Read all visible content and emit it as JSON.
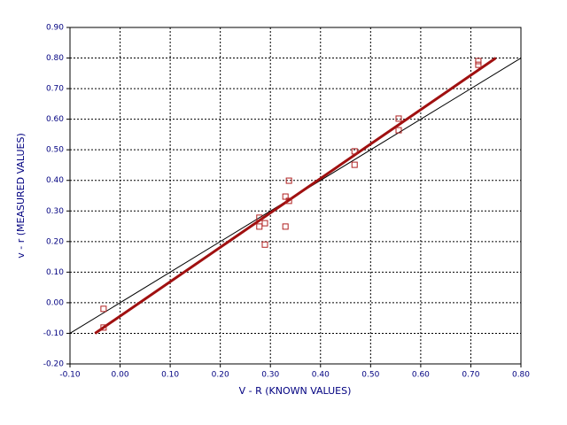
{
  "chart_data": {
    "type": "scatter",
    "x_label": "V - R (KNOWN VALUES)",
    "y_label": "v - r (MEASURED VALUES)",
    "xlim": [
      -0.1,
      0.8
    ],
    "ylim": [
      -0.2,
      0.9
    ],
    "xticks": [
      {
        "value": -0.1,
        "label": "-0.10"
      },
      {
        "value": 0,
        "label": "0.00"
      },
      {
        "value": 0.1,
        "label": "0.10"
      },
      {
        "value": 0.2,
        "label": "0.20"
      },
      {
        "value": 0.3,
        "label": "0.30"
      },
      {
        "value": 0.4,
        "label": "0.40"
      },
      {
        "value": 0.5,
        "label": "0.50"
      },
      {
        "value": 0.6,
        "label": "0.60"
      },
      {
        "value": 0.7,
        "label": "0.70"
      },
      {
        "value": 0.8,
        "label": "0.80"
      }
    ],
    "yticks": [
      {
        "value": -0.2,
        "label": "-0.20"
      },
      {
        "value": -0.1,
        "label": "-0.10"
      },
      {
        "value": 0,
        "label": "0.00"
      },
      {
        "value": 0.1,
        "label": "0.10"
      },
      {
        "value": 0.2,
        "label": "0.20"
      },
      {
        "value": 0.3,
        "label": "0.30"
      },
      {
        "value": 0.4,
        "label": "0.40"
      },
      {
        "value": 0.5,
        "label": "0.50"
      },
      {
        "value": 0.6,
        "label": "0.60"
      },
      {
        "value": 0.7,
        "label": "0.70"
      },
      {
        "value": 0.8,
        "label": "0.80"
      },
      {
        "value": 0.9,
        "label": "0.90"
      }
    ],
    "grid": true,
    "points": {
      "color": "#b02020",
      "x": [
        -0.033,
        -0.033,
        0.278,
        0.278,
        0.289,
        0.289,
        0.33,
        0.33,
        0.337,
        0.337,
        0.468,
        0.468,
        0.556,
        0.556,
        0.715,
        0.715
      ],
      "y": [
        -0.02,
        -0.081,
        0.278,
        0.249,
        0.26,
        0.19,
        0.347,
        0.249,
        0.399,
        0.333,
        0.495,
        0.451,
        0.602,
        0.564,
        0.79,
        0.778
      ]
    },
    "lines": [
      {
        "color": "#000000",
        "x": [
          -0.1,
          0.8
        ],
        "y": [
          -0.1,
          0.8
        ]
      },
      {
        "color": "#a01010",
        "x": [
          -0.05,
          0.75
        ],
        "y": [
          -0.1,
          0.8
        ]
      }
    ]
  }
}
